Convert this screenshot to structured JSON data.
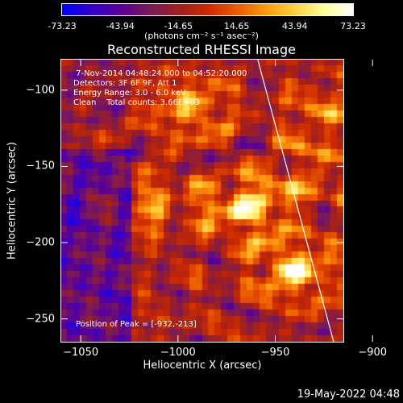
{
  "colorbar": {
    "ticks": [
      "-73.23",
      "-43.94",
      "-14.65",
      "14.65",
      "43.94",
      "73.23"
    ],
    "tick_values": [
      -73.23,
      -43.94,
      -14.65,
      14.65,
      43.94,
      73.23
    ],
    "colormap": [
      "#0000ff",
      "#3300cc",
      "#5a0099",
      "#7a1a5a",
      "#a0201f",
      "#cc2a00",
      "#ec5a00",
      "#ff9a10",
      "#ffd040",
      "#ffff9a",
      "#ffffff"
    ]
  },
  "units_label": "(photons cm⁻² s⁻¹ asec⁻²)",
  "chart_data": {
    "type": "heatmap",
    "title": "Reconstructed RHESSI Image",
    "xlabel": "Heliocentric X (arcsec)",
    "ylabel": "Heliocentric Y (arcsec)",
    "xlim": [
      -1060,
      -915
    ],
    "ylim": [
      -265,
      -80
    ],
    "xticks": [
      -1050,
      -1000,
      -950,
      -900
    ],
    "xtick_labels": [
      "−1050",
      "−1000",
      "−950",
      "−900"
    ],
    "yticks": [
      -100,
      -150,
      -200,
      -250
    ],
    "ytick_labels": [
      "−100",
      "−150",
      "−200",
      "−250"
    ],
    "value_range": [
      -73.23,
      73.23
    ],
    "peak": {
      "x": -932,
      "y": -213
    },
    "bright_sources": [
      {
        "x": -965,
        "y": -178,
        "strength": 1.0
      },
      {
        "x": -940,
        "y": -218,
        "strength": 1.0
      },
      {
        "x": -993,
        "y": -112,
        "strength": 0.7
      },
      {
        "x": -1010,
        "y": -175,
        "strength": 0.5
      },
      {
        "x": -925,
        "y": -118,
        "strength": 0.5
      },
      {
        "x": -935,
        "y": -158,
        "strength": 0.45
      }
    ],
    "limb_x_at_y": [
      [
        -959,
        -80
      ],
      [
        -920,
        -265
      ]
    ]
  },
  "annotations": [
    " 7-Nov-2014 04:48:24.000 to 04:52:20.000",
    "Detectors: 3F 6F 9F, Att 1",
    "Energy Range: 3.0 - 6.0 keV",
    "Clean    Total counts: 3.66E+03"
  ],
  "peak_label": "Position of Peak = [-932,-213]",
  "footer_timestamp": "19-May-2022 04:48"
}
